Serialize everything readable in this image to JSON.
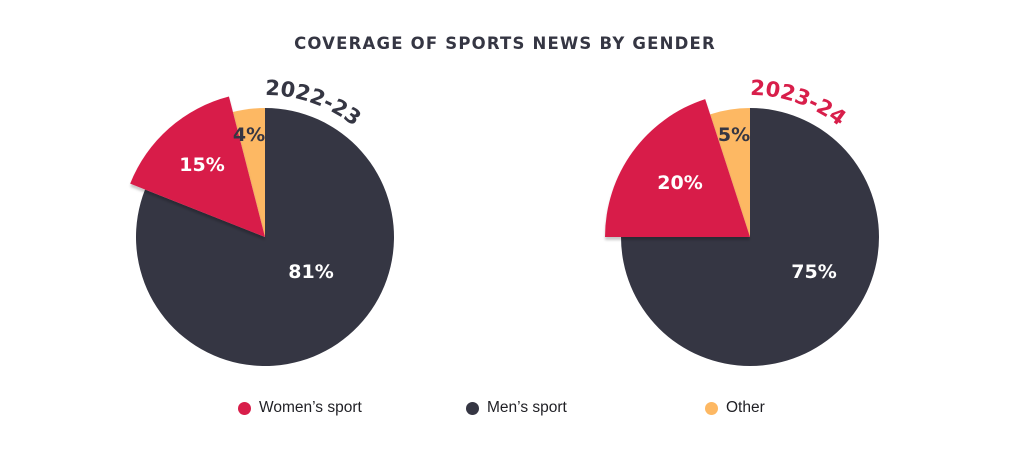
{
  "title": "COVERAGE OF SPORTS NEWS BY GENDER",
  "colors": {
    "women": "#D81E4A",
    "men": "#353643",
    "other": "#FDB863",
    "title": "#353643",
    "year_2022": "#353643",
    "year_2023": "#D81E4A"
  },
  "pies": [
    {
      "year_label": "2022-23",
      "labels": {
        "women": "15%",
        "men": "81%",
        "other": "4%"
      }
    },
    {
      "year_label": "2023-24",
      "labels": {
        "women": "20%",
        "men": "75%",
        "other": "5%"
      }
    }
  ],
  "legend": [
    {
      "label": "Women’s sport",
      "color": "#D81E4A"
    },
    {
      "label": "Men’s sport",
      "color": "#353643"
    },
    {
      "label": "Other",
      "color": "#FDB863"
    }
  ],
  "chart_data": [
    {
      "type": "pie",
      "title": "COVERAGE OF SPORTS NEWS BY GENDER",
      "subtitle": "2022-23",
      "categories": [
        "Women’s sport",
        "Men’s sport",
        "Other"
      ],
      "values": [
        15,
        81,
        4
      ],
      "unit": "%",
      "colors": [
        "#D81E4A",
        "#353643",
        "#FDB863"
      ],
      "exploded": [
        "Women’s sport"
      ],
      "legend_position": "bottom"
    },
    {
      "type": "pie",
      "title": "COVERAGE OF SPORTS NEWS BY GENDER",
      "subtitle": "2023-24",
      "categories": [
        "Women’s sport",
        "Men’s sport",
        "Other"
      ],
      "values": [
        20,
        75,
        5
      ],
      "unit": "%",
      "colors": [
        "#D81E4A",
        "#353643",
        "#FDB863"
      ],
      "exploded": [
        "Women’s sport"
      ],
      "legend_position": "bottom"
    }
  ]
}
